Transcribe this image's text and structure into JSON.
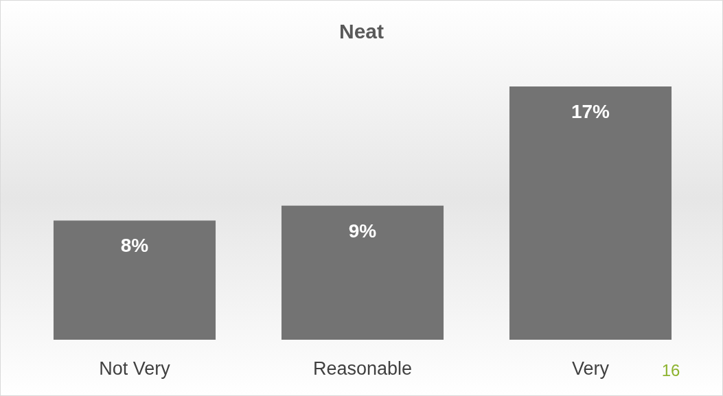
{
  "chart_data": {
    "type": "bar",
    "title": "Neat",
    "categories": [
      "Not Very",
      "Reasonable",
      "Very"
    ],
    "values": [
      8,
      9,
      17
    ],
    "value_labels": [
      "8%",
      "9%",
      "17%"
    ],
    "color": "#737373",
    "annotations": [
      "16"
    ]
  }
}
